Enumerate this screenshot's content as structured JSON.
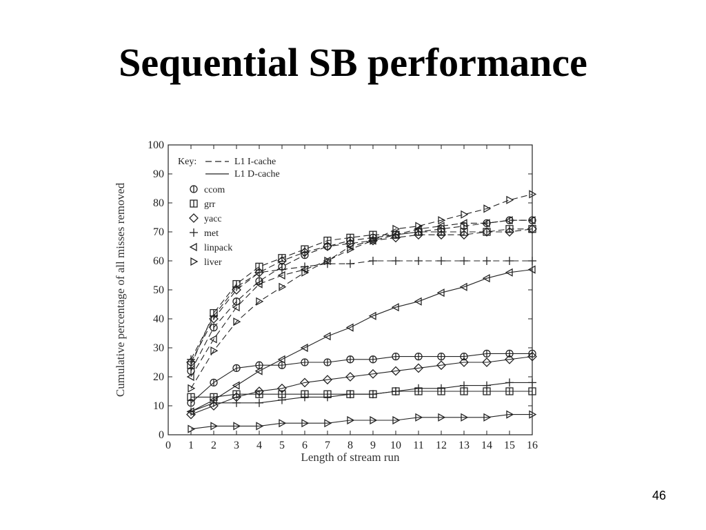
{
  "slide": {
    "title": "Sequential SB performance",
    "page_number": "46"
  },
  "chart_data": {
    "type": "line",
    "xlabel": "Length of stream run",
    "ylabel": "Cumulative percentage of all misses removed",
    "xlim": [
      0,
      16
    ],
    "ylim": [
      0,
      100
    ],
    "x_ticks": [
      0,
      1,
      2,
      3,
      4,
      5,
      6,
      7,
      8,
      9,
      10,
      11,
      12,
      13,
      14,
      15,
      16
    ],
    "y_ticks": [
      0,
      10,
      20,
      30,
      40,
      50,
      60,
      70,
      80,
      90,
      100
    ],
    "grid": false,
    "legend_position": "top-left",
    "key": {
      "title": "Key:",
      "line_styles": [
        {
          "style": "dashed",
          "label": "L1 I-cache"
        },
        {
          "style": "solid",
          "label": "L1 D-cache"
        }
      ],
      "markers": [
        {
          "marker": "circle",
          "label": "ccom"
        },
        {
          "marker": "square",
          "label": "grr"
        },
        {
          "marker": "diamond",
          "label": "yacc"
        },
        {
          "marker": "plus",
          "label": "met"
        },
        {
          "marker": "triangle-left",
          "label": "linpack"
        },
        {
          "marker": "triangle-right",
          "label": "liver"
        }
      ]
    },
    "x": [
      1,
      2,
      3,
      4,
      5,
      6,
      7,
      8,
      9,
      10,
      11,
      12,
      13,
      14,
      15,
      16
    ],
    "series": [
      {
        "benchmark": "ccom",
        "cache": "L1 I-cache",
        "marker": "circle",
        "dashed": true,
        "values": [
          22,
          37,
          46,
          53,
          58,
          62,
          65,
          67,
          68,
          69,
          70,
          71,
          72,
          73,
          74,
          74
        ]
      },
      {
        "benchmark": "grr",
        "cache": "L1 I-cache",
        "marker": "square",
        "dashed": true,
        "values": [
          24,
          42,
          52,
          58,
          61,
          64,
          67,
          68,
          69,
          69,
          70,
          70,
          70,
          70,
          71,
          71
        ]
      },
      {
        "benchmark": "yacc",
        "cache": "L1 I-cache",
        "marker": "diamond",
        "dashed": true,
        "values": [
          25,
          40,
          50,
          56,
          60,
          63,
          65,
          66,
          67,
          68,
          69,
          69,
          69,
          70,
          70,
          71
        ]
      },
      {
        "benchmark": "met",
        "cache": "L1 I-cache",
        "marker": "plus",
        "dashed": true,
        "values": [
          26,
          41,
          51,
          56,
          57,
          58,
          59,
          59,
          60,
          60,
          60,
          60,
          60,
          60,
          60,
          60
        ]
      },
      {
        "benchmark": "linpack",
        "cache": "L1 I-cache",
        "marker": "triangle-left",
        "dashed": true,
        "values": [
          20,
          33,
          44,
          52,
          55,
          57,
          60,
          65,
          67,
          69,
          71,
          72,
          73,
          73,
          74,
          74
        ]
      },
      {
        "benchmark": "liver",
        "cache": "L1 I-cache",
        "marker": "triangle-right",
        "dashed": true,
        "values": [
          16,
          29,
          39,
          46,
          51,
          56,
          60,
          64,
          67,
          71,
          72,
          74,
          76,
          78,
          81,
          83
        ]
      },
      {
        "benchmark": "ccom",
        "cache": "L1 D-cache",
        "marker": "circle",
        "dashed": false,
        "values": [
          11,
          18,
          23,
          24,
          24,
          25,
          25,
          26,
          26,
          27,
          27,
          27,
          27,
          28,
          28,
          28
        ]
      },
      {
        "benchmark": "grr",
        "cache": "L1 D-cache",
        "marker": "square",
        "dashed": false,
        "values": [
          13,
          13,
          14,
          14,
          14,
          14,
          14,
          14,
          14,
          15,
          15,
          15,
          15,
          15,
          15,
          15
        ]
      },
      {
        "benchmark": "yacc",
        "cache": "L1 D-cache",
        "marker": "diamond",
        "dashed": false,
        "values": [
          7,
          10,
          13,
          15,
          16,
          18,
          19,
          20,
          21,
          22,
          23,
          24,
          25,
          25,
          26,
          27
        ]
      },
      {
        "benchmark": "met",
        "cache": "L1 D-cache",
        "marker": "plus",
        "dashed": false,
        "values": [
          8,
          11,
          11,
          11,
          12,
          13,
          13,
          14,
          14,
          15,
          16,
          16,
          17,
          17,
          18,
          18
        ]
      },
      {
        "benchmark": "linpack",
        "cache": "L1 D-cache",
        "marker": "triangle-left",
        "dashed": false,
        "values": [
          8,
          12,
          17,
          22,
          26,
          30,
          34,
          37,
          41,
          44,
          46,
          49,
          51,
          54,
          56,
          57
        ]
      },
      {
        "benchmark": "liver",
        "cache": "L1 D-cache",
        "marker": "triangle-right",
        "dashed": false,
        "values": [
          2,
          3,
          3,
          3,
          4,
          4,
          4,
          5,
          5,
          5,
          6,
          6,
          6,
          6,
          7,
          7
        ]
      }
    ]
  }
}
